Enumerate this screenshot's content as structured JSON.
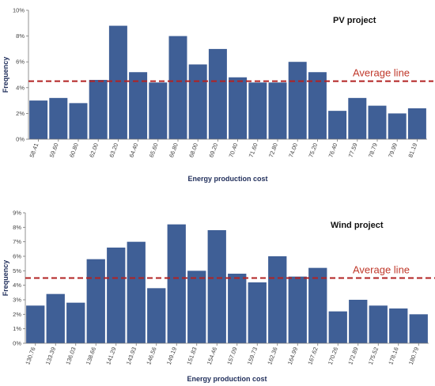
{
  "chart_data": [
    {
      "type": "bar",
      "title": "PV project",
      "xlabel": "Energy production cost",
      "ylabel": "Frequency",
      "ylim": [
        0,
        10
      ],
      "ytick_step": 2,
      "y_unit": "%",
      "categories": [
        "58.41",
        "59.60",
        "60.80",
        "62.00",
        "63.20",
        "64.40",
        "65.60",
        "66.80",
        "68.00",
        "69.20",
        "70.40",
        "71.60",
        "72.80",
        "74.00",
        "75.20",
        "76.40",
        "77.59",
        "78.79",
        "79.99",
        "81.19"
      ],
      "values": [
        3.0,
        3.2,
        2.8,
        4.6,
        8.8,
        5.2,
        4.4,
        8.0,
        5.8,
        7.0,
        4.8,
        4.4,
        4.4,
        6.0,
        5.2,
        2.2,
        3.2,
        2.6,
        2.0,
        2.4
      ],
      "average_line": {
        "value": 4.5,
        "label": "Average line"
      },
      "bar_color": "#3f5f96",
      "average_color": "#b22222",
      "grid": false
    },
    {
      "type": "bar",
      "title": "Wind project",
      "xlabel": "Energy production cost",
      "ylabel": "Frequency",
      "ylim": [
        0,
        9
      ],
      "ytick_step": 1,
      "y_unit": "%",
      "categories": [
        "130.76",
        "133.39",
        "136.03",
        "138.66",
        "141.29",
        "143.93",
        "146.56",
        "149.19",
        "151.83",
        "154.46",
        "157.09",
        "159.73",
        "162.36",
        "164.99",
        "167.62",
        "170.26",
        "172.89",
        "175.52",
        "178.16",
        "180.79"
      ],
      "values": [
        2.6,
        3.4,
        2.8,
        5.8,
        6.6,
        7.0,
        3.8,
        8.2,
        5.0,
        7.8,
        4.8,
        4.2,
        6.0,
        4.6,
        5.2,
        2.2,
        3.0,
        2.6,
        2.4,
        2.0
      ],
      "average_line": {
        "value": 4.5,
        "label": "Average line"
      },
      "bar_color": "#3f5f96",
      "average_color": "#b22222",
      "grid": false
    }
  ]
}
